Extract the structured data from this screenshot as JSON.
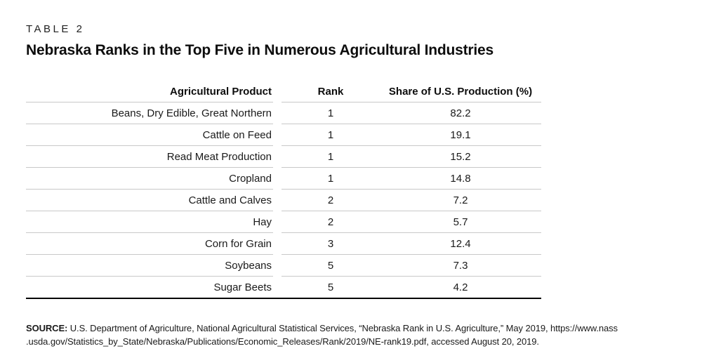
{
  "header": {
    "table_label": "TABLE 2",
    "title": "Nebraska Ranks in the Top Five in Numerous Agricultural Industries"
  },
  "table": {
    "columns": [
      "Agricultural Product",
      "Rank",
      "Share of U.S. Production (%)"
    ],
    "rows": [
      {
        "product": "Beans, Dry Edible, Great Northern",
        "rank": "1",
        "share": "82.2"
      },
      {
        "product": "Cattle on Feed",
        "rank": "1",
        "share": "19.1"
      },
      {
        "product": "Read Meat Production",
        "rank": "1",
        "share": "15.2"
      },
      {
        "product": "Cropland",
        "rank": "1",
        "share": "14.8"
      },
      {
        "product": "Cattle and Calves",
        "rank": "2",
        "share": "7.2"
      },
      {
        "product": "Hay",
        "rank": "2",
        "share": "5.7"
      },
      {
        "product": "Corn for Grain",
        "rank": "3",
        "share": "12.4"
      },
      {
        "product": "Soybeans",
        "rank": "5",
        "share": "7.3"
      },
      {
        "product": "Sugar Beets",
        "rank": "5",
        "share": "4.2"
      }
    ]
  },
  "source": {
    "label": "SOURCE:",
    "line1": "U.S. Department of Agriculture, National Agricultural Statistical Services, “Nebraska Rank in U.S. Agriculture,” May 2019, https://www.nass",
    "line2": ".usda.gov/Statistics_by_State/Nebraska/Publications/Economic_Releases/Rank/2019/NE-rank19.pdf, accessed August 20, 2019."
  },
  "colors": {
    "text": "#111111",
    "rule_light": "#c8c8c8",
    "rule_heavy": "#000000",
    "background": "#ffffff"
  }
}
